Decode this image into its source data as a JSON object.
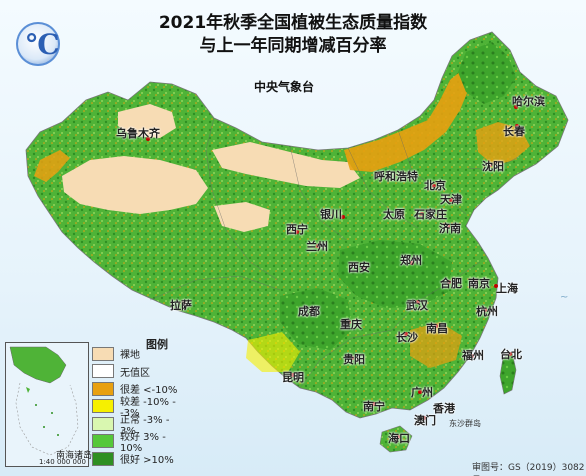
{
  "title_line1": "2021年秋季全国植被生态质量指数",
  "title_line2": "与上一年同期增减百分率",
  "agency": "中央气象台",
  "legend": {
    "title": "图例",
    "items": [
      {
        "label": "裸地",
        "color": "#f7dcb4"
      },
      {
        "label": "无值区",
        "color": "#ffffff"
      },
      {
        "label": "很差 <-10%",
        "color": "#e8a010"
      },
      {
        "label": "较差 -10% - -3%",
        "color": "#f6f000"
      },
      {
        "label": "正常 -3% - 3%",
        "color": "#d9f7b0"
      },
      {
        "label": "较好 3% - 10%",
        "color": "#55c83a"
      },
      {
        "label": "很好 >10%",
        "color": "#2e8f22"
      }
    ]
  },
  "cities": [
    {
      "name": "乌鲁木齐"
    },
    {
      "name": "哈尔滨"
    },
    {
      "name": "长春"
    },
    {
      "name": "沈阳"
    },
    {
      "name": "呼和浩特"
    },
    {
      "name": "北京"
    },
    {
      "name": "天津"
    },
    {
      "name": "银川"
    },
    {
      "name": "太原"
    },
    {
      "name": "石家庄"
    },
    {
      "name": "济南"
    },
    {
      "name": "西宁"
    },
    {
      "name": "兰州"
    },
    {
      "name": "西安"
    },
    {
      "name": "郑州"
    },
    {
      "name": "合肥"
    },
    {
      "name": "南京"
    },
    {
      "name": "上海"
    },
    {
      "name": "拉萨"
    },
    {
      "name": "成都"
    },
    {
      "name": "武汉"
    },
    {
      "name": "杭州"
    },
    {
      "name": "重庆"
    },
    {
      "name": "长沙"
    },
    {
      "name": "南昌"
    },
    {
      "name": "贵阳"
    },
    {
      "name": "福州"
    },
    {
      "name": "台北"
    },
    {
      "name": "昆明"
    },
    {
      "name": "广州"
    },
    {
      "name": "南宁"
    },
    {
      "name": "香港"
    },
    {
      "name": "澳门"
    },
    {
      "name": "海口"
    }
  ],
  "inset": {
    "label": "南海诸岛",
    "scale": "1:40 000 000"
  },
  "sea_label": "东沙群岛",
  "footer": "审图号：GS（2019）3082号"
}
